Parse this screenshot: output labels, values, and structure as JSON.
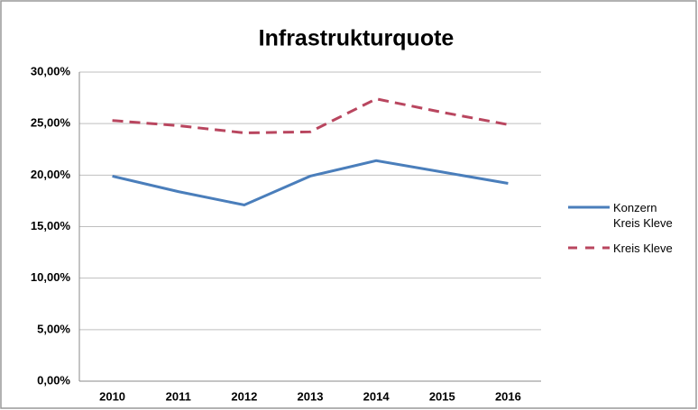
{
  "chart_data": {
    "type": "line",
    "title": "Infrastrukturquote",
    "categories": [
      "2010",
      "2011",
      "2012",
      "2013",
      "2014",
      "2015",
      "2016"
    ],
    "series": [
      {
        "name": "Konzern Kreis Kleve",
        "color": "#4a7ebb",
        "dash": false,
        "values": [
          19.9,
          18.4,
          17.1,
          19.9,
          21.4,
          20.3,
          19.2
        ]
      },
      {
        "name": "Kreis Kleve",
        "color": "#b9465f",
        "dash": true,
        "values": [
          25.3,
          24.8,
          24.1,
          24.2,
          27.4,
          26.1,
          24.9
        ]
      }
    ],
    "ylim": [
      0,
      30
    ],
    "yticks": [
      {
        "value": 0,
        "label": "0,00%"
      },
      {
        "value": 5,
        "label": "5,00%"
      },
      {
        "value": 10,
        "label": "10,00%"
      },
      {
        "value": 15,
        "label": "15,00%"
      },
      {
        "value": 20,
        "label": "20,00%"
      },
      {
        "value": 25,
        "label": "25,00%"
      },
      {
        "value": 30,
        "label": "30,00%"
      }
    ],
    "grid": true,
    "legend": "right"
  }
}
